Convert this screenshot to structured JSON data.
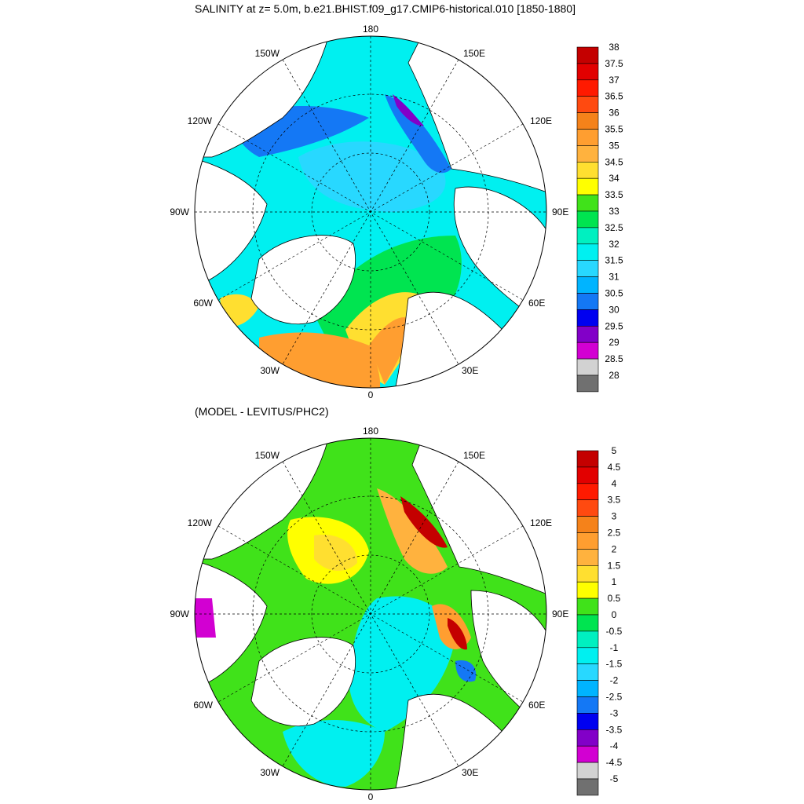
{
  "top": {
    "title": "SALINITY at z=   5.0m, b.e21.BHIST.f09_g17.CMIP6-historical.010 [1850-1880]",
    "lon_labels": {
      "n": "180",
      "s": "0",
      "e": "90E",
      "w": "90W",
      "ne": "150E",
      "nw": "150W",
      "ene": "120E",
      "wnw": "120W",
      "se": "30E",
      "sw": "30W",
      "ese": "60E",
      "wsw": "60W"
    },
    "colorbar": {
      "labels": [
        "38",
        "37.5",
        "37",
        "36.5",
        "36",
        "35.5",
        "35",
        "34.5",
        "34",
        "33.5",
        "33",
        "32.5",
        "32",
        "31.5",
        "31",
        "30.5",
        "30",
        "29.5",
        "29",
        "28.5",
        "28"
      ],
      "colors": [
        "#c40000",
        "#e20000",
        "#ff1a00",
        "#ff4a10",
        "#f5821a",
        "#ff9e30",
        "#ffb23e",
        "#ffdf30",
        "#ffff00",
        "#40e21a",
        "#00e450",
        "#00f0c0",
        "#00f0f0",
        "#28d8ff",
        "#00b4ff",
        "#1478f5",
        "#0000f0",
        "#8200c8",
        "#d200d2",
        "#d2d2d2",
        "#707070"
      ]
    }
  },
  "bottom": {
    "title": "(MODEL - LEVITUS/PHC2)",
    "lon_labels": {
      "n": "180",
      "s": "0",
      "e": "90E",
      "w": "90W",
      "ne": "150E",
      "nw": "150W",
      "ene": "120E",
      "wnw": "120W",
      "se": "30E",
      "sw": "30W",
      "ese": "60E",
      "wsw": "60W"
    },
    "colorbar": {
      "labels": [
        "5",
        "4.5",
        "4",
        "3.5",
        "3",
        "2.5",
        "2",
        "1.5",
        "1",
        "0.5",
        "0",
        "-0.5",
        "-1",
        "-1.5",
        "-2",
        "-2.5",
        "-3",
        "-3.5",
        "-4",
        "-4.5",
        "-5"
      ],
      "colors": [
        "#c40000",
        "#e20000",
        "#ff1a00",
        "#ff4a10",
        "#f5821a",
        "#ff9e30",
        "#ffb23e",
        "#ffdf30",
        "#ffff00",
        "#40e21a",
        "#00e450",
        "#00f0c0",
        "#00f0f0",
        "#28d8ff",
        "#00b4ff",
        "#1478f5",
        "#0000f0",
        "#8200c8",
        "#d200d2",
        "#d2d2d2",
        "#707070"
      ]
    }
  },
  "colors": {
    "land": "#ffffff",
    "coast": "#000000",
    "grid": "#000000"
  }
}
